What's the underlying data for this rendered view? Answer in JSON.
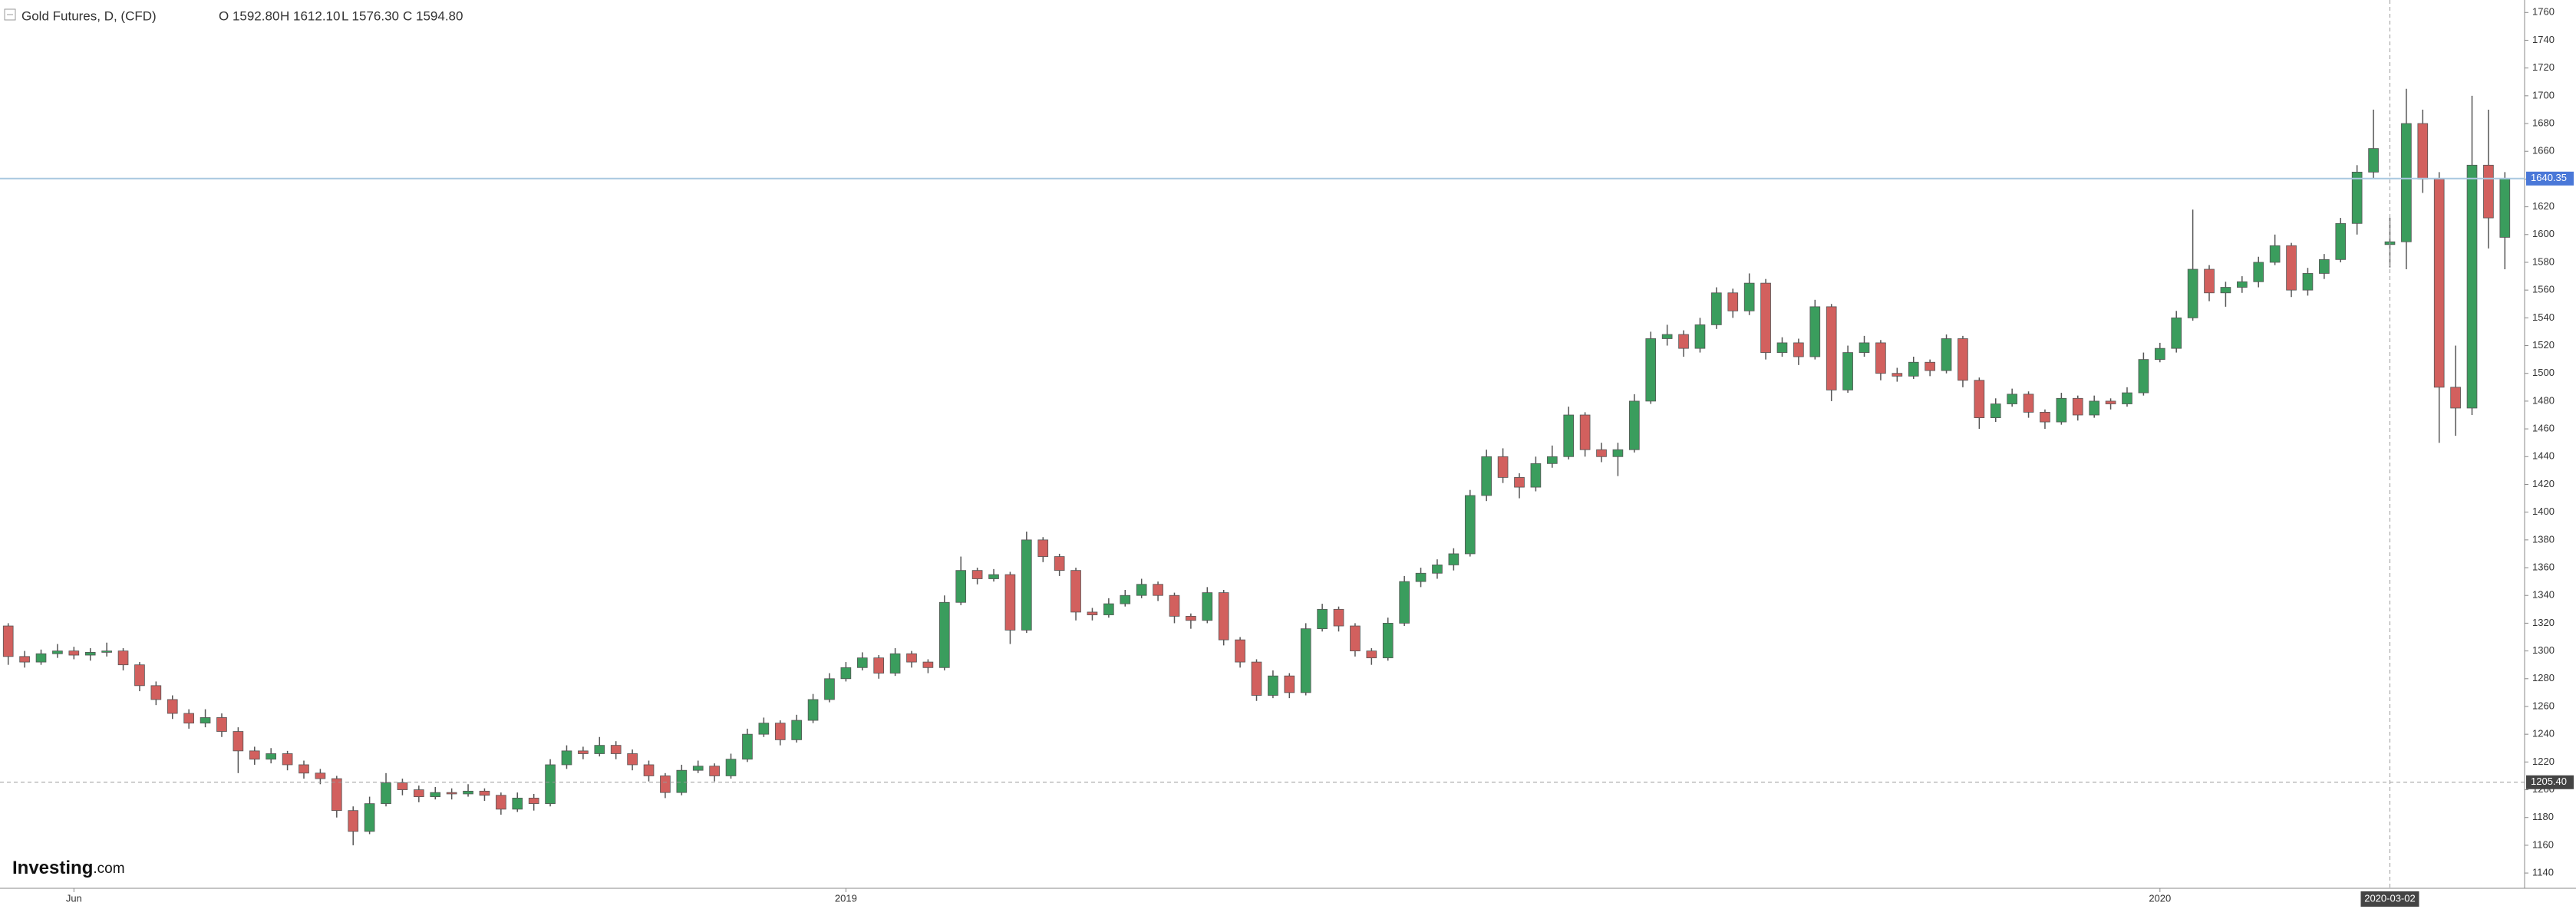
{
  "chart_data": {
    "type": "candlestick",
    "title": "Gold Futures, D, (CFD)",
    "header_values": [
      "O 1592.80",
      "H 1612.10",
      "L 1576.30",
      "C 1594.80"
    ],
    "logo": "Investing",
    "logo_suffix": ".com",
    "up_color": "#3a9d5d",
    "down_color": "#d2605e",
    "price_line_color": "#4a78d8",
    "ylim": [
      1129,
      1769
    ],
    "yticks": [
      1140,
      1160,
      1180,
      1200,
      1220,
      1240,
      1260,
      1280,
      1300,
      1320,
      1340,
      1360,
      1380,
      1400,
      1420,
      1440,
      1460,
      1480,
      1500,
      1520,
      1540,
      1560,
      1580,
      1600,
      1620,
      1640,
      1660,
      1680,
      1700,
      1720,
      1740,
      1760
    ],
    "xlim": [
      -0.5,
      153.2
    ],
    "xticks": [
      {
        "value": 4,
        "label": "Jun"
      },
      {
        "value": 51,
        "label": "2019"
      },
      {
        "value": 131,
        "label": "2020"
      }
    ],
    "crosshair": {
      "x": {
        "value": 145,
        "label": "2020-03-02"
      },
      "y": {
        "value": 1205.4,
        "label": "1205.40"
      }
    },
    "ohlc": [
      [
        1318,
        1320,
        1290,
        1296
      ],
      [
        1296,
        1300,
        1288,
        1292
      ],
      [
        1292,
        1301,
        1290,
        1298
      ],
      [
        1298,
        1305,
        1295,
        1300
      ],
      [
        1300,
        1303,
        1294,
        1297
      ],
      [
        1297,
        1302,
        1293,
        1299
      ],
      [
        1299,
        1306,
        1296,
        1300
      ],
      [
        1300,
        1302,
        1286,
        1290
      ],
      [
        1290,
        1292,
        1271,
        1275
      ],
      [
        1275,
        1278,
        1261,
        1265
      ],
      [
        1265,
        1268,
        1251,
        1255
      ],
      [
        1255,
        1258,
        1244,
        1248
      ],
      [
        1248,
        1258,
        1245,
        1252
      ],
      [
        1252,
        1255,
        1238,
        1242
      ],
      [
        1242,
        1245,
        1212,
        1228
      ],
      [
        1228,
        1231,
        1218,
        1222
      ],
      [
        1222,
        1230,
        1219,
        1226
      ],
      [
        1226,
        1228,
        1214,
        1218
      ],
      [
        1218,
        1221,
        1208,
        1212
      ],
      [
        1212,
        1215,
        1204,
        1208
      ],
      [
        1208,
        1210,
        1180,
        1185
      ],
      [
        1185,
        1188,
        1160,
        1170
      ],
      [
        1170,
        1195,
        1168,
        1190
      ],
      [
        1190,
        1212,
        1188,
        1205
      ],
      [
        1205,
        1208,
        1196,
        1200
      ],
      [
        1200,
        1203,
        1191,
        1195
      ],
      [
        1195,
        1202,
        1193,
        1198
      ],
      [
        1198,
        1201,
        1193,
        1197
      ],
      [
        1197,
        1204,
        1195,
        1199
      ],
      [
        1199,
        1201,
        1192,
        1196
      ],
      [
        1196,
        1198,
        1182,
        1186
      ],
      [
        1186,
        1198,
        1184,
        1194
      ],
      [
        1194,
        1197,
        1185,
        1190
      ],
      [
        1190,
        1222,
        1188,
        1218
      ],
      [
        1218,
        1232,
        1215,
        1228
      ],
      [
        1228,
        1231,
        1222,
        1226
      ],
      [
        1226,
        1238,
        1224,
        1232
      ],
      [
        1232,
        1235,
        1222,
        1226
      ],
      [
        1226,
        1229,
        1214,
        1218
      ],
      [
        1218,
        1221,
        1206,
        1210
      ],
      [
        1210,
        1212,
        1194,
        1198
      ],
      [
        1198,
        1218,
        1196,
        1214
      ],
      [
        1214,
        1221,
        1212,
        1217
      ],
      [
        1217,
        1219,
        1206,
        1210
      ],
      [
        1210,
        1226,
        1208,
        1222
      ],
      [
        1222,
        1244,
        1220,
        1240
      ],
      [
        1240,
        1252,
        1238,
        1248
      ],
      [
        1248,
        1250,
        1232,
        1236
      ],
      [
        1236,
        1254,
        1234,
        1250
      ],
      [
        1250,
        1269,
        1248,
        1265
      ],
      [
        1265,
        1284,
        1263,
        1280
      ],
      [
        1280,
        1292,
        1278,
        1288
      ],
      [
        1288,
        1299,
        1286,
        1295
      ],
      [
        1295,
        1297,
        1280,
        1284
      ],
      [
        1284,
        1302,
        1282,
        1298
      ],
      [
        1298,
        1300,
        1288,
        1292
      ],
      [
        1292,
        1294,
        1284,
        1288
      ],
      [
        1288,
        1340,
        1286,
        1335
      ],
      [
        1335,
        1368,
        1333,
        1358
      ],
      [
        1358,
        1360,
        1348,
        1352
      ],
      [
        1352,
        1359,
        1350,
        1355
      ],
      [
        1355,
        1357,
        1305,
        1315
      ],
      [
        1315,
        1386,
        1313,
        1380
      ],
      [
        1380,
        1382,
        1364,
        1368
      ],
      [
        1368,
        1370,
        1354,
        1358
      ],
      [
        1358,
        1360,
        1322,
        1328
      ],
      [
        1328,
        1331,
        1322,
        1326
      ],
      [
        1326,
        1338,
        1324,
        1334
      ],
      [
        1334,
        1344,
        1332,
        1340
      ],
      [
        1340,
        1352,
        1338,
        1348
      ],
      [
        1348,
        1350,
        1336,
        1340
      ],
      [
        1340,
        1342,
        1320,
        1325
      ],
      [
        1325,
        1327,
        1316,
        1322
      ],
      [
        1322,
        1346,
        1320,
        1342
      ],
      [
        1342,
        1344,
        1304,
        1308
      ],
      [
        1308,
        1310,
        1288,
        1292
      ],
      [
        1292,
        1294,
        1264,
        1268
      ],
      [
        1268,
        1286,
        1266,
        1282
      ],
      [
        1282,
        1284,
        1266,
        1270
      ],
      [
        1270,
        1320,
        1268,
        1316
      ],
      [
        1316,
        1334,
        1314,
        1330
      ],
      [
        1330,
        1332,
        1314,
        1318
      ],
      [
        1318,
        1320,
        1296,
        1300
      ],
      [
        1300,
        1302,
        1290,
        1295
      ],
      [
        1295,
        1324,
        1293,
        1320
      ],
      [
        1320,
        1354,
        1318,
        1350
      ],
      [
        1350,
        1360,
        1346,
        1356
      ],
      [
        1356,
        1366,
        1352,
        1362
      ],
      [
        1362,
        1374,
        1358,
        1370
      ],
      [
        1370,
        1416,
        1368,
        1412
      ],
      [
        1412,
        1445,
        1408,
        1440
      ],
      [
        1440,
        1446,
        1421,
        1425
      ],
      [
        1425,
        1428,
        1410,
        1418
      ],
      [
        1418,
        1440,
        1415,
        1435
      ],
      [
        1435,
        1448,
        1432,
        1440
      ],
      [
        1440,
        1476,
        1438,
        1470
      ],
      [
        1470,
        1472,
        1440,
        1445
      ],
      [
        1445,
        1450,
        1436,
        1440
      ],
      [
        1440,
        1450,
        1426,
        1445
      ],
      [
        1445,
        1485,
        1443,
        1480
      ],
      [
        1480,
        1530,
        1478,
        1525
      ],
      [
        1525,
        1535,
        1520,
        1528
      ],
      [
        1528,
        1531,
        1512,
        1518
      ],
      [
        1518,
        1540,
        1515,
        1535
      ],
      [
        1535,
        1562,
        1532,
        1558
      ],
      [
        1558,
        1561,
        1540,
        1545
      ],
      [
        1545,
        1572,
        1542,
        1565
      ],
      [
        1565,
        1568,
        1510,
        1515
      ],
      [
        1515,
        1526,
        1512,
        1522
      ],
      [
        1522,
        1525,
        1506,
        1512
      ],
      [
        1512,
        1553,
        1510,
        1548
      ],
      [
        1548,
        1550,
        1480,
        1488
      ],
      [
        1488,
        1520,
        1486,
        1515
      ],
      [
        1515,
        1527,
        1512,
        1522
      ],
      [
        1522,
        1524,
        1495,
        1500
      ],
      [
        1500,
        1504,
        1494,
        1498
      ],
      [
        1498,
        1512,
        1496,
        1508
      ],
      [
        1508,
        1510,
        1498,
        1502
      ],
      [
        1502,
        1528,
        1500,
        1525
      ],
      [
        1525,
        1527,
        1490,
        1495
      ],
      [
        1495,
        1497,
        1460,
        1468
      ],
      [
        1468,
        1482,
        1465,
        1478
      ],
      [
        1478,
        1489,
        1476,
        1485
      ],
      [
        1485,
        1487,
        1468,
        1472
      ],
      [
        1472,
        1474,
        1460,
        1465
      ],
      [
        1465,
        1486,
        1463,
        1482
      ],
      [
        1482,
        1484,
        1466,
        1470
      ],
      [
        1470,
        1484,
        1468,
        1480
      ],
      [
        1480,
        1482,
        1474,
        1478
      ],
      [
        1478,
        1490,
        1476,
        1486
      ],
      [
        1486,
        1515,
        1484,
        1510
      ],
      [
        1510,
        1522,
        1508,
        1518
      ],
      [
        1518,
        1545,
        1515,
        1540
      ],
      [
        1540,
        1618,
        1538,
        1575
      ],
      [
        1575,
        1578,
        1552,
        1558
      ],
      [
        1558,
        1566,
        1548,
        1562
      ],
      [
        1562,
        1570,
        1558,
        1566
      ],
      [
        1566,
        1584,
        1562,
        1580
      ],
      [
        1580,
        1600,
        1578,
        1592
      ],
      [
        1592,
        1594,
        1555,
        1560
      ],
      [
        1560,
        1576,
        1556,
        1572
      ],
      [
        1572,
        1586,
        1568,
        1582
      ],
      [
        1582,
        1612,
        1580,
        1608
      ],
      [
        1608,
        1650,
        1600,
        1645
      ],
      [
        1645,
        1690,
        1640,
        1662
      ],
      [
        1592.8,
        1612.1,
        1576.3,
        1594.8
      ],
      [
        1594.8,
        1705,
        1575,
        1680
      ],
      [
        1680,
        1690,
        1630,
        1640
      ],
      [
        1640,
        1645,
        1450,
        1490
      ],
      [
        1490,
        1520,
        1455,
        1475
      ],
      [
        1475,
        1700,
        1470,
        1650
      ],
      [
        1650,
        1690,
        1590,
        1612
      ],
      [
        1598,
        1645,
        1575,
        1640.35
      ]
    ]
  }
}
